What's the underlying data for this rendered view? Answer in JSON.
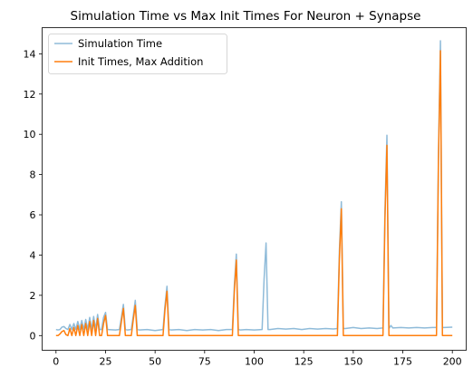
{
  "chart_data": {
    "type": "line",
    "title": "Simulation Time vs Max Init Times For Neuron + Synapse",
    "xlabel": "",
    "ylabel": "",
    "xlim": [
      -7,
      207
    ],
    "ylim": [
      -0.73,
      15.3
    ],
    "xticks": [
      0,
      25,
      50,
      75,
      100,
      125,
      150,
      175,
      200
    ],
    "yticks": [
      0,
      2,
      4,
      6,
      8,
      10,
      12,
      14
    ],
    "grid": false,
    "legend": "upper left",
    "series": [
      {
        "name": "Simulation Time",
        "color": "#1f77b4",
        "opacity": 0.5,
        "x": [
          0,
          1,
          2,
          3,
          4,
          5,
          6,
          7,
          8,
          9,
          10,
          11,
          12,
          13,
          14,
          15,
          16,
          17,
          18,
          19,
          20,
          21,
          22,
          23,
          24,
          25,
          26,
          30,
          32,
          33,
          34,
          35,
          36,
          38,
          39,
          40,
          41,
          42,
          46,
          50,
          54,
          55,
          56,
          57,
          58,
          62,
          66,
          70,
          74,
          78,
          82,
          86,
          89,
          90,
          91,
          92,
          93,
          96,
          100,
          104,
          105,
          106,
          107,
          108,
          112,
          116,
          120,
          124,
          128,
          132,
          136,
          140,
          142,
          143,
          144,
          145,
          146,
          150,
          154,
          158,
          162,
          165,
          166,
          167,
          168,
          169,
          170,
          174,
          178,
          182,
          186,
          190,
          192,
          193,
          194,
          195,
          196,
          200
        ],
        "y": [
          0.3,
          0.28,
          0.3,
          0.42,
          0.45,
          0.35,
          0.3,
          0.55,
          0.3,
          0.6,
          0.3,
          0.7,
          0.3,
          0.75,
          0.3,
          0.8,
          0.3,
          0.9,
          0.3,
          0.95,
          0.3,
          1.05,
          0.3,
          0.3,
          0.9,
          1.15,
          0.3,
          0.28,
          0.3,
          0.9,
          1.55,
          0.3,
          0.28,
          0.3,
          1.0,
          1.75,
          0.3,
          0.28,
          0.3,
          0.25,
          0.3,
          1.5,
          2.45,
          0.3,
          0.28,
          0.3,
          0.25,
          0.3,
          0.28,
          0.3,
          0.25,
          0.3,
          0.3,
          2.5,
          4.05,
          0.3,
          0.28,
          0.3,
          0.28,
          0.3,
          2.8,
          4.6,
          0.3,
          0.3,
          0.35,
          0.32,
          0.35,
          0.3,
          0.35,
          0.32,
          0.35,
          0.33,
          0.35,
          4.2,
          6.65,
          0.35,
          0.35,
          0.4,
          0.35,
          0.38,
          0.35,
          0.38,
          6.2,
          9.95,
          0.35,
          0.5,
          0.38,
          0.4,
          0.38,
          0.4,
          0.38,
          0.4,
          0.4,
          9.0,
          14.65,
          0.4,
          0.4,
          0.42
        ]
      },
      {
        "name": "Init Times, Max Addition",
        "color": "#ff7f0e",
        "opacity": 1,
        "x": [
          0,
          1,
          2,
          3,
          4,
          5,
          6,
          7,
          8,
          9,
          10,
          11,
          12,
          13,
          14,
          15,
          16,
          17,
          18,
          19,
          20,
          21,
          22,
          23,
          24,
          25,
          26,
          32,
          33,
          34,
          35,
          38,
          39,
          40,
          41,
          54,
          55,
          56,
          57,
          89,
          90,
          91,
          92,
          142,
          143,
          144,
          145,
          165,
          166,
          167,
          168,
          192,
          193,
          194,
          195,
          200
        ],
        "y": [
          0.0,
          0.0,
          0.08,
          0.2,
          0.25,
          0.05,
          0.0,
          0.35,
          0.0,
          0.4,
          0.0,
          0.5,
          0.0,
          0.55,
          0.0,
          0.6,
          0.0,
          0.7,
          0.0,
          0.75,
          0.0,
          0.85,
          0.0,
          0.0,
          0.6,
          1.0,
          0.0,
          0.0,
          0.7,
          1.35,
          0.0,
          0.0,
          0.8,
          1.5,
          0.0,
          0.0,
          1.3,
          2.2,
          0.0,
          0.0,
          2.2,
          3.75,
          0.0,
          0.0,
          3.8,
          6.3,
          0.0,
          0.0,
          5.8,
          9.45,
          0.0,
          0.0,
          8.7,
          14.15,
          0.0,
          0.0
        ]
      }
    ]
  }
}
